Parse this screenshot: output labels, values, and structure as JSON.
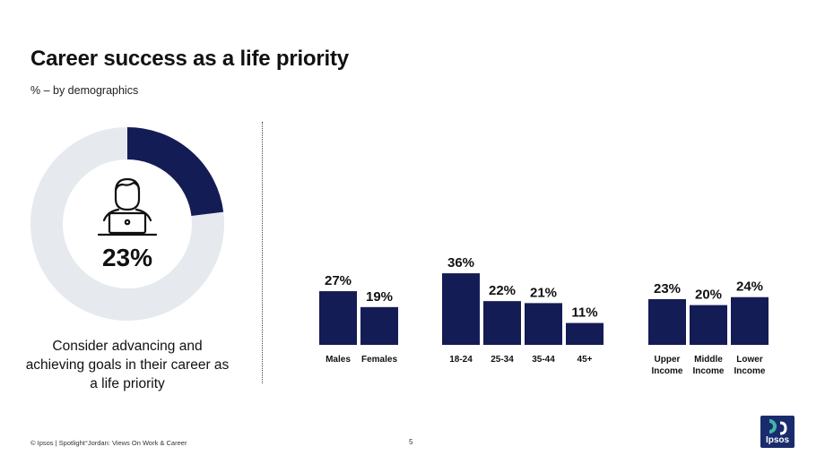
{
  "header": {
    "title": "Career success as a life priority",
    "subtitle": "% – by demographics"
  },
  "donut": {
    "value_label": "23%",
    "value": 23,
    "caption": "Consider advancing and achieving goals in their career as a life priority",
    "icon": "person-at-laptop-icon"
  },
  "chart_data": {
    "type": "bar",
    "groups": [
      {
        "categories": [
          "Males",
          "Females"
        ],
        "values": [
          27,
          19
        ],
        "labels": [
          "27%",
          "19%"
        ]
      },
      {
        "categories": [
          "18-24",
          "25-34",
          "35-44",
          "45+"
        ],
        "values": [
          36,
          22,
          21,
          11
        ],
        "labels": [
          "36%",
          "22%",
          "21%",
          "11%"
        ]
      },
      {
        "categories": [
          "Upper\nIncome",
          "Middle\nIncome",
          "Lower\nIncome"
        ],
        "values": [
          23,
          20,
          24
        ],
        "labels": [
          "23%",
          "20%",
          "24%"
        ]
      }
    ]
  },
  "footer": {
    "source": "© Ipsos | Spotlight°Jordan: Views On Work & Career",
    "page": "5"
  },
  "logo": {
    "text": "Ipsos"
  },
  "colors": {
    "bar": "#141c55",
    "donut_fill": "#141c55",
    "donut_track": "#e6e9ee",
    "logo_bg": "#1a2b6d"
  }
}
